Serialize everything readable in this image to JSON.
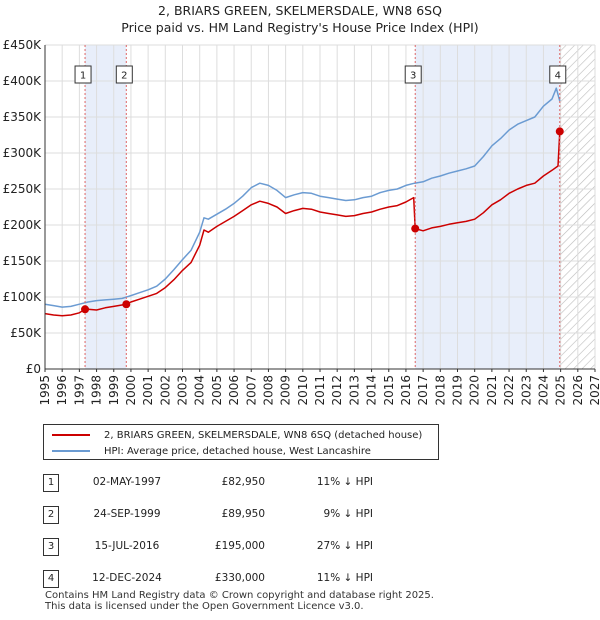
{
  "title_line1": "2, BRIARS GREEN, SKELMERSDALE, WN8 6SQ",
  "title_line2": "Price paid vs. HM Land Registry's House Price Index (HPI)",
  "colors": {
    "property": "#cc0000",
    "hpi": "#6b9bd2",
    "shade": "#e8eefa",
    "marker_line": "#dd6666"
  },
  "legend": {
    "property_label": "2, BRIARS GREEN, SKELMERSDALE, WN8 6SQ (detached house)",
    "hpi_label": "HPI: Average price, detached house, West Lancashire"
  },
  "transactions": [
    {
      "num": "1",
      "date": "02-MAY-1997",
      "price": "£82,950",
      "hpi": "11% ↓ HPI"
    },
    {
      "num": "2",
      "date": "24-SEP-1999",
      "price": "£89,950",
      "hpi": "9% ↓ HPI"
    },
    {
      "num": "3",
      "date": "15-JUL-2016",
      "price": "£195,000",
      "hpi": "27% ↓ HPI"
    },
    {
      "num": "4",
      "date": "12-DEC-2024",
      "price": "£330,000",
      "hpi": "11% ↓ HPI"
    }
  ],
  "footer_line1": "Contains HM Land Registry data © Crown copyright and database right 2025.",
  "footer_line2": "This data is licensed under the Open Government Licence v3.0.",
  "chart_data": {
    "type": "line",
    "title": "2, BRIARS GREEN, SKELMERSDALE, WN8 6SQ — Price paid vs. HM Land Registry's House Price Index (HPI)",
    "xlim": [
      1995,
      2027
    ],
    "ylim": [
      0,
      450000
    ],
    "x_ticks": [
      1995,
      1996,
      1997,
      1998,
      1999,
      2000,
      2001,
      2002,
      2003,
      2004,
      2005,
      2006,
      2007,
      2008,
      2009,
      2010,
      2011,
      2012,
      2013,
      2014,
      2015,
      2016,
      2017,
      2018,
      2019,
      2020,
      2021,
      2022,
      2023,
      2024,
      2025,
      2026,
      2027
    ],
    "y_ticks": [
      0,
      50000,
      100000,
      150000,
      200000,
      250000,
      300000,
      350000,
      400000,
      450000
    ],
    "y_tick_labels": [
      "£0",
      "£50K",
      "£100K",
      "£150K",
      "£200K",
      "£250K",
      "£300K",
      "£350K",
      "£400K",
      "£450K"
    ],
    "shaded_ranges": [
      [
        1997.33,
        1999.73
      ],
      [
        2016.54,
        2024.95
      ]
    ],
    "future_hatch_from": 2024.95,
    "series": [
      {
        "name": "HPI: Average price, detached house, West Lancashire",
        "points": [
          [
            1995,
            90000
          ],
          [
            1995.5,
            88000
          ],
          [
            1996,
            86000
          ],
          [
            1996.5,
            87000
          ],
          [
            1997,
            90000
          ],
          [
            1997.5,
            93000
          ],
          [
            1998,
            95000
          ],
          [
            1998.5,
            96000
          ],
          [
            1999,
            97000
          ],
          [
            1999.5,
            98000
          ],
          [
            2000,
            102000
          ],
          [
            2000.5,
            106000
          ],
          [
            2001,
            110000
          ],
          [
            2001.5,
            115000
          ],
          [
            2002,
            125000
          ],
          [
            2002.5,
            138000
          ],
          [
            2003,
            152000
          ],
          [
            2003.5,
            165000
          ],
          [
            2004,
            190000
          ],
          [
            2004.25,
            210000
          ],
          [
            2004.5,
            208000
          ],
          [
            2005,
            215000
          ],
          [
            2005.5,
            222000
          ],
          [
            2006,
            230000
          ],
          [
            2006.5,
            240000
          ],
          [
            2007,
            252000
          ],
          [
            2007.5,
            258000
          ],
          [
            2008,
            255000
          ],
          [
            2008.5,
            248000
          ],
          [
            2009,
            238000
          ],
          [
            2009.5,
            242000
          ],
          [
            2010,
            245000
          ],
          [
            2010.5,
            244000
          ],
          [
            2011,
            240000
          ],
          [
            2011.5,
            238000
          ],
          [
            2012,
            236000
          ],
          [
            2012.5,
            234000
          ],
          [
            2013,
            235000
          ],
          [
            2013.5,
            238000
          ],
          [
            2014,
            240000
          ],
          [
            2014.5,
            245000
          ],
          [
            2015,
            248000
          ],
          [
            2015.5,
            250000
          ],
          [
            2016,
            255000
          ],
          [
            2016.5,
            258000
          ],
          [
            2017,
            260000
          ],
          [
            2017.5,
            265000
          ],
          [
            2018,
            268000
          ],
          [
            2018.5,
            272000
          ],
          [
            2019,
            275000
          ],
          [
            2019.5,
            278000
          ],
          [
            2020,
            282000
          ],
          [
            2020.5,
            295000
          ],
          [
            2021,
            310000
          ],
          [
            2021.5,
            320000
          ],
          [
            2022,
            332000
          ],
          [
            2022.5,
            340000
          ],
          [
            2023,
            345000
          ],
          [
            2023.5,
            350000
          ],
          [
            2024,
            365000
          ],
          [
            2024.5,
            375000
          ],
          [
            2024.75,
            390000
          ],
          [
            2024.95,
            372000
          ]
        ]
      },
      {
        "name": "2, BRIARS GREEN, SKELMERSDALE, WN8 6SQ (detached house)",
        "points": [
          [
            1995,
            77000
          ],
          [
            1995.5,
            75000
          ],
          [
            1996,
            74000
          ],
          [
            1996.5,
            75000
          ],
          [
            1997,
            78000
          ],
          [
            1997.33,
            82950
          ],
          [
            1997.5,
            83000
          ],
          [
            1998,
            82000
          ],
          [
            1998.5,
            85000
          ],
          [
            1999,
            87000
          ],
          [
            1999.73,
            89950
          ],
          [
            2000,
            93000
          ],
          [
            2000.5,
            97000
          ],
          [
            2001,
            101000
          ],
          [
            2001.5,
            105000
          ],
          [
            2002,
            113000
          ],
          [
            2002.5,
            124000
          ],
          [
            2003,
            137000
          ],
          [
            2003.5,
            148000
          ],
          [
            2004,
            172000
          ],
          [
            2004.25,
            193000
          ],
          [
            2004.5,
            190000
          ],
          [
            2005,
            198000
          ],
          [
            2005.5,
            205000
          ],
          [
            2006,
            212000
          ],
          [
            2006.5,
            220000
          ],
          [
            2007,
            228000
          ],
          [
            2007.5,
            233000
          ],
          [
            2008,
            230000
          ],
          [
            2008.5,
            225000
          ],
          [
            2009,
            216000
          ],
          [
            2009.5,
            220000
          ],
          [
            2010,
            223000
          ],
          [
            2010.5,
            222000
          ],
          [
            2011,
            218000
          ],
          [
            2011.5,
            216000
          ],
          [
            2012,
            214000
          ],
          [
            2012.5,
            212000
          ],
          [
            2013,
            213000
          ],
          [
            2013.5,
            216000
          ],
          [
            2014,
            218000
          ],
          [
            2014.5,
            222000
          ],
          [
            2015,
            225000
          ],
          [
            2015.5,
            227000
          ],
          [
            2016,
            232000
          ],
          [
            2016.45,
            238000
          ],
          [
            2016.54,
            195000
          ],
          [
            2017,
            192000
          ],
          [
            2017.5,
            196000
          ],
          [
            2018,
            198000
          ],
          [
            2018.5,
            201000
          ],
          [
            2019,
            203000
          ],
          [
            2019.5,
            205000
          ],
          [
            2020,
            208000
          ],
          [
            2020.5,
            217000
          ],
          [
            2021,
            228000
          ],
          [
            2021.5,
            235000
          ],
          [
            2022,
            244000
          ],
          [
            2022.5,
            250000
          ],
          [
            2023,
            255000
          ],
          [
            2023.5,
            258000
          ],
          [
            2024,
            268000
          ],
          [
            2024.5,
            276000
          ],
          [
            2024.85,
            282000
          ],
          [
            2024.95,
            330000
          ]
        ]
      }
    ],
    "sales": [
      {
        "label": "1",
        "x": 1997.33,
        "y": 82950
      },
      {
        "label": "2",
        "x": 1999.73,
        "y": 89950
      },
      {
        "label": "3",
        "x": 2016.54,
        "y": 195000
      },
      {
        "label": "4",
        "x": 2024.95,
        "y": 330000
      }
    ]
  }
}
